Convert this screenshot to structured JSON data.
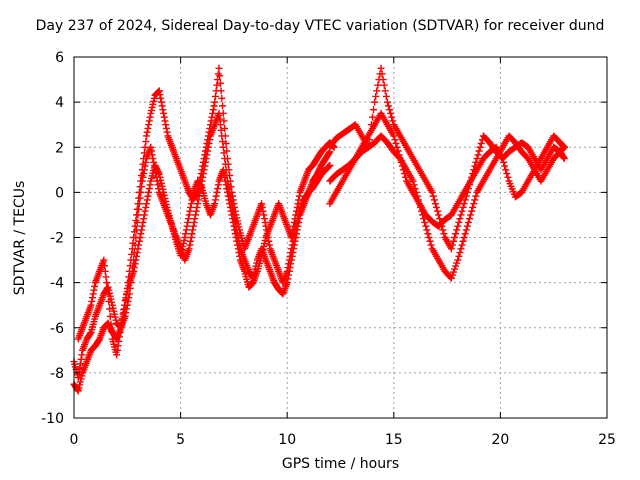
{
  "chart_data": {
    "type": "scatter",
    "title": "Day 237 of 2024, Sidereal Day-to-day VTEC variation (SDTVAR) for receiver dund",
    "xlabel": "GPS time / hours",
    "ylabel": "SDTVAR / TECUs",
    "xlim": [
      0,
      25
    ],
    "ylim": [
      -10,
      6
    ],
    "xticks": [
      "0",
      "5",
      "10",
      "15",
      "20",
      "25"
    ],
    "yticks": [
      "-10",
      "-8",
      "-6",
      "-4",
      "-2",
      "0",
      "2",
      "4",
      "6"
    ],
    "grid": true,
    "marker": "+",
    "color": "#ff0000",
    "series": [
      {
        "x": [
          0.0,
          0.2,
          0.4,
          0.6,
          0.8,
          1.0,
          1.2,
          1.4,
          1.6,
          1.8,
          2.0,
          2.2,
          2.4,
          2.6,
          2.8,
          3.0,
          3.2,
          3.4,
          3.6,
          3.8,
          4.0,
          4.2,
          4.4,
          4.6,
          4.8,
          5.0,
          5.2,
          5.4,
          5.6,
          5.8,
          6.0,
          6.2,
          6.4,
          6.6,
          6.8,
          7.0,
          7.2,
          7.4,
          7.6,
          7.8,
          8.0,
          8.2,
          8.4,
          8.6,
          8.8,
          9.0,
          9.2,
          9.4,
          9.6,
          9.8,
          10.0,
          10.2,
          10.4,
          10.6,
          10.8,
          11.0,
          11.2,
          11.4,
          11.6,
          11.8,
          12.0
        ],
        "y": [
          -7.5,
          -8.2,
          -7.0,
          -6.5,
          -6.2,
          -5.5,
          -5.0,
          -4.5,
          -4.2,
          -5.0,
          -5.8,
          -6.0,
          -5.5,
          -4.5,
          -3.0,
          -1.0,
          0.5,
          1.5,
          2.0,
          1.0,
          0.0,
          -0.5,
          -1.0,
          -1.5,
          -2.0,
          -2.5,
          -3.0,
          -2.5,
          -1.5,
          -0.5,
          0.5,
          1.5,
          2.5,
          3.0,
          3.5,
          2.0,
          0.5,
          -0.5,
          -1.5,
          -2.5,
          -3.0,
          -3.5,
          -3.8,
          -3.0,
          -2.5,
          -3.0,
          -3.5,
          -4.0,
          -4.3,
          -4.5,
          -4.0,
          -3.0,
          -2.0,
          -1.0,
          -0.5,
          0.0,
          0.2,
          0.5,
          0.8,
          1.0,
          1.2
        ]
      },
      {
        "x": [
          0.0,
          0.2,
          0.4,
          0.6,
          0.8,
          1.0,
          1.2,
          1.4,
          1.6,
          1.8,
          2.0,
          2.2,
          2.4,
          2.6,
          2.8,
          3.0,
          3.2,
          3.4,
          3.6,
          3.8,
          4.0,
          4.2,
          4.4,
          4.6,
          4.8,
          5.0,
          5.2,
          5.4,
          5.6,
          5.8,
          6.0,
          6.2,
          6.4,
          6.6,
          6.8,
          7.0,
          7.2,
          7.4,
          7.6,
          7.8,
          8.0,
          8.2,
          8.4,
          8.6,
          8.8,
          9.0,
          9.2,
          9.4,
          9.6,
          9.8,
          10.0,
          10.2,
          10.4,
          10.6,
          10.8,
          11.0,
          11.2,
          11.4,
          11.6,
          11.8,
          12.0
        ],
        "y": [
          -8.5,
          -8.8,
          -8.0,
          -7.5,
          -7.0,
          -6.8,
          -6.5,
          -6.0,
          -5.8,
          -6.2,
          -6.5,
          -6.0,
          -5.0,
          -3.5,
          -2.0,
          -0.5,
          1.0,
          2.5,
          3.5,
          4.3,
          4.5,
          3.5,
          2.5,
          2.0,
          1.5,
          1.0,
          0.5,
          0.0,
          -0.3,
          0.0,
          1.0,
          2.0,
          3.0,
          4.0,
          5.5,
          3.5,
          1.5,
          0.0,
          -1.0,
          -1.8,
          -2.5,
          -2.0,
          -1.5,
          -1.0,
          -0.5,
          -1.5,
          -2.5,
          -3.0,
          -3.5,
          -4.0,
          -3.5,
          -2.5,
          -1.5,
          -0.8,
          -0.3,
          0.0,
          0.5,
          0.8,
          1.2,
          1.5,
          1.8
        ]
      },
      {
        "x": [
          0.2,
          0.4,
          0.6,
          0.8,
          1.0,
          1.2,
          1.4,
          1.6,
          1.8,
          2.0,
          2.2,
          2.4,
          2.6,
          2.8,
          3.0,
          3.2,
          3.4,
          3.6,
          3.8,
          4.0,
          4.2,
          4.4,
          4.6,
          4.8,
          5.0,
          5.2,
          5.4,
          5.6,
          5.8,
          6.0,
          6.2,
          6.4,
          6.6,
          6.8,
          7.0,
          7.2,
          7.4,
          7.6,
          7.8,
          8.0,
          8.2,
          8.4,
          8.6,
          8.8,
          9.0,
          9.2,
          9.4,
          9.6,
          9.8,
          10.0,
          10.2,
          10.4,
          10.6,
          10.8,
          11.0,
          11.2,
          11.4,
          11.6,
          11.8,
          12.0,
          12.2
        ],
        "y": [
          -6.5,
          -6.0,
          -5.5,
          -5.0,
          -4.0,
          -3.5,
          -3.0,
          -4.5,
          -6.5,
          -7.2,
          -6.0,
          -4.8,
          -4.0,
          -3.5,
          -2.5,
          -1.5,
          -0.5,
          0.5,
          1.2,
          0.8,
          0.0,
          -0.8,
          -1.5,
          -2.2,
          -2.8,
          -2.0,
          -1.0,
          0.0,
          0.5,
          0.2,
          -0.5,
          -1.0,
          -0.5,
          0.5,
          1.0,
          0.0,
          -1.0,
          -2.0,
          -3.0,
          -3.5,
          -4.2,
          -4.0,
          -3.5,
          -2.8,
          -2.0,
          -1.5,
          -1.0,
          -0.5,
          -1.0,
          -1.5,
          -2.0,
          -1.0,
          0.0,
          0.5,
          1.0,
          1.2,
          1.5,
          1.8,
          2.0,
          2.2,
          2.0
        ]
      },
      {
        "x": [
          12.0,
          12.3,
          12.6,
          12.9,
          13.2,
          13.5,
          13.8,
          14.1,
          14.4,
          14.7,
          15.0,
          15.3,
          15.6,
          15.9,
          16.2,
          16.5,
          16.8,
          17.1,
          17.4,
          17.7,
          18.0,
          18.3,
          18.6,
          18.9,
          19.2,
          19.5,
          19.8,
          20.1,
          20.4,
          20.7,
          21.0,
          21.3,
          21.6,
          21.9,
          22.2,
          22.5,
          22.8,
          23.0
        ],
        "y": [
          2.0,
          2.4,
          2.6,
          2.8,
          3.0,
          2.5,
          2.0,
          4.0,
          5.5,
          4.0,
          3.0,
          2.5,
          2.0,
          1.5,
          1.0,
          0.5,
          0.0,
          -1.0,
          -2.0,
          -2.5,
          -1.5,
          -0.5,
          0.5,
          1.5,
          2.5,
          2.2,
          1.8,
          1.5,
          1.8,
          2.0,
          2.2,
          2.0,
          1.5,
          1.0,
          1.5,
          2.0,
          1.8,
          1.5
        ]
      },
      {
        "x": [
          12.0,
          12.3,
          12.6,
          12.9,
          13.2,
          13.5,
          13.8,
          14.1,
          14.4,
          14.7,
          15.0,
          15.3,
          15.6,
          15.9,
          16.2,
          16.5,
          16.8,
          17.1,
          17.4,
          17.7,
          18.0,
          18.3,
          18.6,
          18.9,
          19.2,
          19.5,
          19.8,
          20.1,
          20.4,
          20.7,
          21.0,
          21.3,
          21.6,
          21.9,
          22.2,
          22.5,
          22.8,
          23.0
        ],
        "y": [
          0.5,
          0.8,
          1.0,
          1.2,
          1.5,
          1.8,
          2.0,
          2.2,
          2.5,
          2.2,
          1.8,
          1.5,
          1.0,
          0.5,
          -0.5,
          -1.5,
          -2.5,
          -3.0,
          -3.5,
          -3.8,
          -3.0,
          -2.0,
          -1.0,
          0.0,
          0.5,
          1.0,
          1.5,
          2.0,
          2.5,
          2.2,
          1.8,
          1.5,
          1.0,
          0.5,
          1.0,
          1.5,
          1.8,
          2.0
        ]
      },
      {
        "x": [
          12.0,
          12.3,
          12.6,
          12.9,
          13.2,
          13.5,
          13.8,
          14.1,
          14.4,
          14.7,
          15.0,
          15.3,
          15.6,
          15.9,
          16.2,
          16.5,
          16.8,
          17.1,
          17.4,
          17.7,
          18.0,
          18.3,
          18.6,
          18.9,
          19.2,
          19.5,
          19.8,
          20.1,
          20.4,
          20.7,
          21.0,
          21.3,
          21.6,
          21.9,
          22.2,
          22.5,
          22.8,
          23.0
        ],
        "y": [
          -0.5,
          0.0,
          0.5,
          1.0,
          1.5,
          2.0,
          2.5,
          3.0,
          3.5,
          3.0,
          2.5,
          1.5,
          0.5,
          0.0,
          -0.5,
          -1.0,
          -1.3,
          -1.5,
          -1.2,
          -1.0,
          -0.5,
          0.0,
          0.5,
          1.0,
          1.5,
          1.8,
          2.0,
          1.5,
          0.5,
          -0.2,
          0.0,
          0.5,
          1.0,
          1.5,
          2.0,
          2.5,
          2.2,
          2.0
        ]
      }
    ]
  }
}
